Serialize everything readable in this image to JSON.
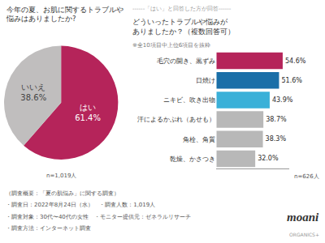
{
  "chart_data": [
    {
      "type": "pie",
      "title": "今年の夏、お肌に関するトラブルや\n悩みはありましたか?",
      "categories": [
        "はい",
        "いいえ"
      ],
      "values": [
        61.4,
        38.6
      ],
      "value_labels": [
        "61.4%",
        "38.6%"
      ],
      "colors": [
        "#b5245a",
        "#c0bebe"
      ],
      "data_labels": true,
      "annotations": [
        "n=1,019人"
      ]
    },
    {
      "type": "bar",
      "orientation": "horizontal",
      "title": "どういったトラブルや悩みが\nありましたか？（複数回答可）",
      "subtitle": "※全10項目中上位6項目を抜粋",
      "categories": [
        "毛穴の開き、黒ずみ",
        "日焼け",
        "ニキビ、吹き出物",
        "汗によるかぶれ（あせも）",
        "角栓、角質",
        "乾燥、かさつき"
      ],
      "values": [
        54.6,
        51.6,
        43.9,
        38.7,
        38.3,
        32.0
      ],
      "value_labels": [
        "54.6%",
        "51.6%",
        "43.9%",
        "38.7%",
        "38.3%",
        "32.0%"
      ],
      "colors": [
        "#b5245a",
        "#1a6fa8",
        "#3ab0d8",
        "#b8b8b8",
        "#b8b8b8",
        "#b8b8b8"
      ],
      "data_labels": true,
      "xlim": [
        0,
        60
      ],
      "tick_labels": "y",
      "grid": false,
      "annotations": [
        "------「はい」と回答した方が回答------",
        "n=626人",
        "（調査概要：「夏の肌悩み」に関する調査）",
        "・調査日：2022年8月24日（水）　・調査人数：1,019人",
        "・調査対象：30代〜40代の女性　・モニター提供元：ゼネラルリサーチ",
        "・調査方法：インターネット調査",
        "moani",
        "ORGANICS+"
      ]
    }
  ]
}
